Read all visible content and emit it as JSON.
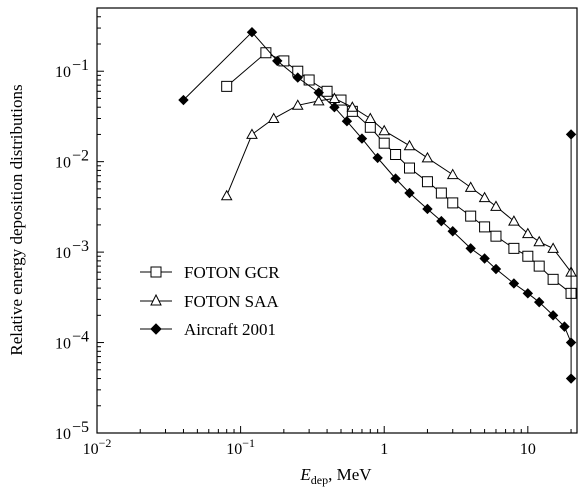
{
  "chart_data": {
    "type": "line",
    "title": "",
    "xlabel_main": "E",
    "xlabel_sub": "dep",
    "xlabel_unit": ", MeV",
    "ylabel": "Relative energy deposition distributions",
    "x_scale": "log",
    "y_scale": "log",
    "xlim": [
      0.01,
      22
    ],
    "ylim": [
      1e-05,
      0.5
    ],
    "grid": false,
    "legend_position": "lower-left",
    "x_ticks": [
      {
        "value": 0.01,
        "base": "10",
        "exp": "−2"
      },
      {
        "value": 0.1,
        "base": "10",
        "exp": "−1"
      },
      {
        "value": 1,
        "base": "1",
        "exp": ""
      },
      {
        "value": 10,
        "base": "10",
        "exp": ""
      }
    ],
    "y_ticks": [
      {
        "value": 0.1,
        "base": "10",
        "exp": "−1"
      },
      {
        "value": 0.01,
        "base": "10",
        "exp": "−2"
      },
      {
        "value": 0.001,
        "base": "10",
        "exp": "−3"
      },
      {
        "value": 0.0001,
        "base": "10",
        "exp": "−4"
      },
      {
        "value": 1e-05,
        "base": "10",
        "exp": "−5"
      }
    ],
    "series": [
      {
        "name": "FOTON GCR",
        "marker": "square-open",
        "color": "#000000",
        "x": [
          0.08,
          0.15,
          0.2,
          0.25,
          0.3,
          0.4,
          0.5,
          0.6,
          0.8,
          1.0,
          1.2,
          1.5,
          2.0,
          2.5,
          3.0,
          4.0,
          5.0,
          6.0,
          8.0,
          10.0,
          12.0,
          15.0,
          20.0
        ],
        "y": [
          0.068,
          0.16,
          0.13,
          0.1,
          0.08,
          0.06,
          0.048,
          0.036,
          0.024,
          0.016,
          0.012,
          0.0085,
          0.006,
          0.0045,
          0.0035,
          0.0025,
          0.0019,
          0.0015,
          0.0011,
          0.0009,
          0.0007,
          0.0005,
          0.00035
        ]
      },
      {
        "name": "FOTON SAA",
        "marker": "triangle-open",
        "color": "#000000",
        "x": [
          0.08,
          0.12,
          0.17,
          0.25,
          0.35,
          0.45,
          0.6,
          0.8,
          1.0,
          1.5,
          2.0,
          3.0,
          4.0,
          5.0,
          6.0,
          8.0,
          10.0,
          12.0,
          15.0,
          20.0
        ],
        "y": [
          0.0042,
          0.02,
          0.03,
          0.042,
          0.047,
          0.05,
          0.04,
          0.03,
          0.022,
          0.015,
          0.011,
          0.0072,
          0.0052,
          0.004,
          0.0032,
          0.0022,
          0.0016,
          0.0013,
          0.0011,
          0.0006
        ]
      },
      {
        "name": "Aircraft 2001",
        "marker": "diamond-filled",
        "color": "#000000",
        "x": [
          0.04,
          0.12,
          0.18,
          0.25,
          0.35,
          0.45,
          0.55,
          0.7,
          0.9,
          1.2,
          1.5,
          2.0,
          2.5,
          3.0,
          4.0,
          5.0,
          6.0,
          8.0,
          10.0,
          12.0,
          15.0,
          18.0,
          20.0,
          20.0,
          20.0
        ],
        "y": [
          0.048,
          0.27,
          0.13,
          0.085,
          0.058,
          0.04,
          0.028,
          0.018,
          0.011,
          0.0065,
          0.0045,
          0.003,
          0.0022,
          0.0017,
          0.0011,
          0.00085,
          0.00065,
          0.00045,
          0.00035,
          0.00028,
          0.0002,
          0.00015,
          0.0001,
          4e-05,
          0.02
        ]
      }
    ]
  }
}
